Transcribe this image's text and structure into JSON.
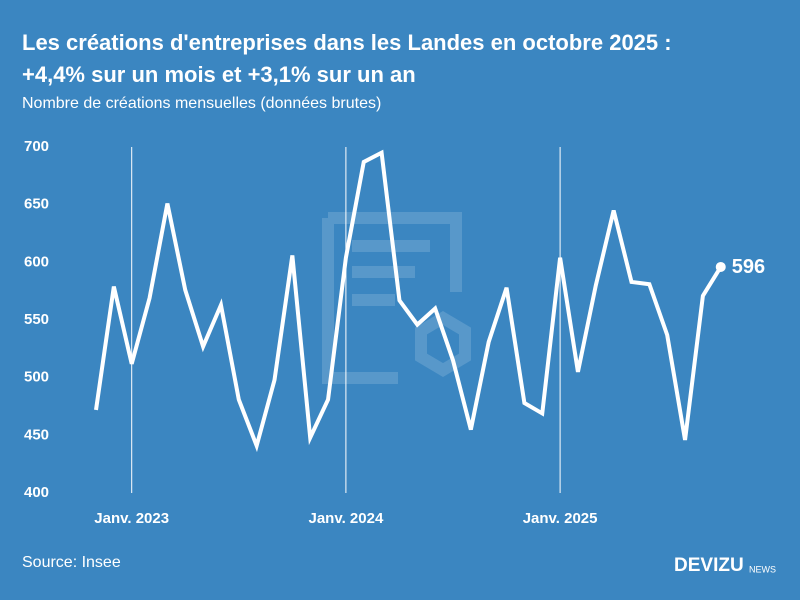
{
  "chart_data": {
    "type": "line",
    "title": "Les créations d'entreprises dans les Landes en octobre 2025 :",
    "title_line2": "+4,4% sur un mois et +3,1% sur un an",
    "subtitle": "Nombre de créations mensuelles (données brutes)",
    "source": "Source: Insee",
    "brand": "DEVIZU",
    "brand_suffix": "NEWS",
    "categories": [
      null,
      null,
      "Janv. 2023",
      null,
      null,
      null,
      null,
      null,
      null,
      null,
      null,
      null,
      null,
      null,
      "Janv. 2024",
      null,
      null,
      null,
      null,
      null,
      null,
      null,
      null,
      null,
      null,
      null,
      "Janv. 2025",
      null,
      null,
      null,
      null,
      null,
      null,
      null,
      null,
      null
    ],
    "series": [
      {
        "name": "Créations",
        "color": "#ffffff",
        "values": [
          472,
          579,
          512,
          569,
          651,
          576,
          527,
          563,
          481,
          441,
          498,
          606,
          448,
          481,
          604,
          687,
          695,
          567,
          546,
          560,
          515,
          455,
          531,
          578,
          478,
          469,
          604,
          505,
          580,
          645,
          583,
          581,
          537,
          446,
          571,
          596
        ]
      }
    ],
    "ylim": [
      400,
      700
    ],
    "yticks": [
      400,
      450,
      500,
      550,
      600,
      650,
      700
    ],
    "background": "#3b86c1",
    "grid": false
  }
}
